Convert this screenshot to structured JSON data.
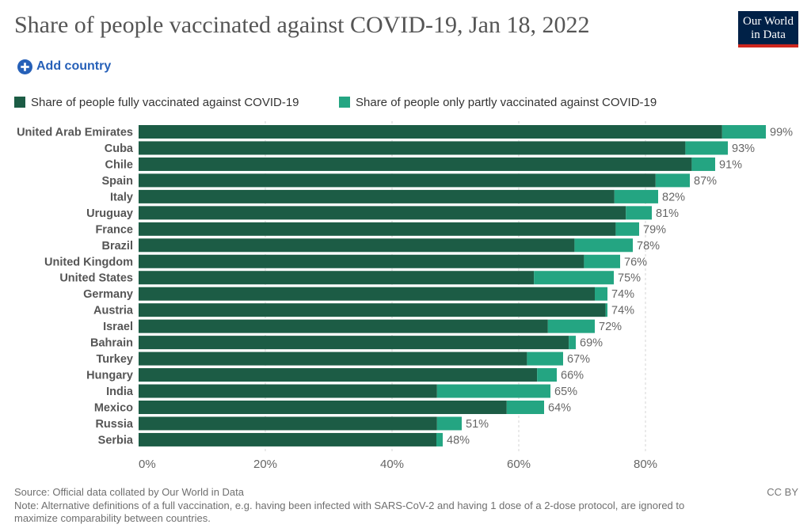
{
  "header": {
    "logo_line1": "Our World",
    "logo_line2": "in Data",
    "add_country_label": "Add country"
  },
  "chart_data": {
    "type": "bar",
    "orientation": "horizontal",
    "stacked": true,
    "title": "Share of people vaccinated against COVID-19, Jan 18, 2022",
    "xlabel": "",
    "ylabel": "",
    "categories": [
      "United Arab Emirates",
      "Cuba",
      "Chile",
      "Spain",
      "Italy",
      "Uruguay",
      "France",
      "Brazil",
      "United Kingdom",
      "United States",
      "Germany",
      "Austria",
      "Israel",
      "Bahrain",
      "Turkey",
      "Hungary",
      "India",
      "Mexico",
      "Russia",
      "Serbia"
    ],
    "series": [
      {
        "name": "Share of people fully vaccinated against COVID-19",
        "color": "#1c5c45",
        "values": [
          92.1,
          86.3,
          87.3,
          81.6,
          75.1,
          76.9,
          75.3,
          68.8,
          70.3,
          62.4,
          72.0,
          73.7,
          64.6,
          67.9,
          61.3,
          62.9,
          47.1,
          58.1,
          47.1,
          47.0
        ]
      },
      {
        "name": "Share of people only partly vaccinated against COVID-19",
        "color": "#24a582",
        "values": [
          6.9,
          6.7,
          3.7,
          5.4,
          6.9,
          4.1,
          3.7,
          9.2,
          5.7,
          12.6,
          2.0,
          0.3,
          7.4,
          1.1,
          5.7,
          3.1,
          17.9,
          5.9,
          3.9,
          1.0
        ]
      }
    ],
    "totals": [
      99,
      93,
      91,
      87,
      82,
      81,
      79,
      78,
      76,
      75,
      74,
      74,
      72,
      69,
      67,
      66,
      65,
      64,
      51,
      48
    ],
    "data_labels": [
      "99%",
      "93%",
      "91%",
      "87%",
      "82%",
      "81%",
      "79%",
      "78%",
      "76%",
      "75%",
      "74%",
      "74%",
      "72%",
      "69%",
      "67%",
      "66%",
      "65%",
      "64%",
      "51%",
      "48%"
    ],
    "xlim": [
      0,
      100
    ],
    "x_ticks": [
      0,
      20,
      40,
      60,
      80
    ],
    "x_tick_labels": [
      "0%",
      "20%",
      "40%",
      "60%",
      "80%"
    ],
    "grid": true,
    "legend_position": "top-left"
  },
  "footer": {
    "source": "Source: Official data collated by Our World in Data",
    "note_lines": [
      "Note: Alternative definitions of a full vaccination, e.g. having been infected with SARS-CoV-2 and having 1 dose of a 2-dose protocol, are ignored to",
      "maximize comparability between countries."
    ],
    "license": "CC BY"
  }
}
